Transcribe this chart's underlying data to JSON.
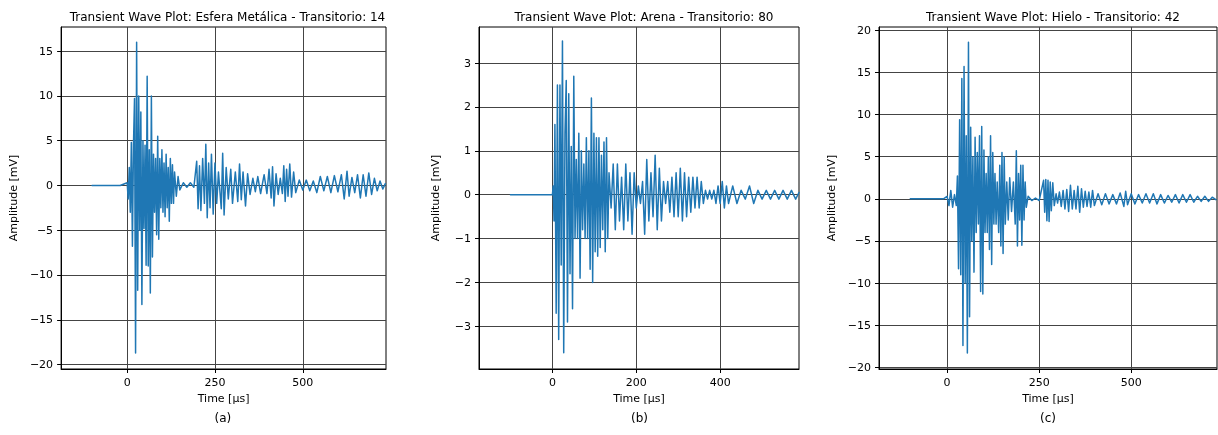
{
  "chart_data": [
    {
      "type": "line",
      "title": "Transient Wave Plot: Esfera Metálica - Transitorio: 14",
      "xlabel": "Time [μs]",
      "ylabel": "Amplitude [mV]",
      "annotations": [
        "(a)"
      ],
      "grid": true,
      "marker": "none",
      "line_style": "solid",
      "xlim": [
        -188,
        737
      ],
      "xticks": [
        0,
        250,
        500
      ],
      "ylim": [
        -20.5,
        17.7
      ],
      "yticks": [
        {
          "value": -20,
          "label": "−20"
        },
        {
          "value": -15,
          "label": "−15"
        },
        {
          "value": -10,
          "label": "−10"
        },
        {
          "value": -5,
          "label": "−5"
        },
        0,
        5,
        10,
        15
      ],
      "series": [
        {
          "color": "#1f77b4",
          "x": [
            -100,
            -20,
            0,
            3,
            6,
            9,
            12,
            15,
            18,
            21,
            24,
            27,
            30,
            33,
            36,
            39,
            42,
            45,
            48,
            51,
            54,
            57,
            60,
            63,
            66,
            69,
            72,
            75,
            78,
            81,
            84,
            87,
            90,
            93,
            96,
            99,
            102,
            105,
            108,
            111,
            114,
            117,
            120,
            123,
            126,
            129,
            132,
            135,
            140,
            145,
            150,
            160,
            170,
            180,
            190,
            198,
            202,
            206,
            210,
            215,
            220,
            224,
            228,
            232,
            236,
            240,
            245,
            250,
            255,
            260,
            268,
            272,
            276,
            282,
            288,
            295,
            300,
            308,
            315,
            320,
            325,
            330,
            337,
            343,
            350,
            358,
            365,
            372,
            380,
            390,
            398,
            404,
            410,
            414,
            418,
            424,
            430,
            436,
            442,
            446,
            450,
            454,
            458,
            463,
            468,
            474,
            480,
            490,
            500,
            510,
            520,
            530,
            540,
            550,
            560,
            570,
            580,
            590,
            600,
            610,
            618,
            626,
            632,
            640,
            648,
            656,
            664,
            672,
            680,
            688,
            696,
            704,
            712,
            720,
            728,
            735
          ],
          "values": [
            0,
            0,
            0.3,
            -1.5,
            2,
            -3,
            4.8,
            -6.8,
            4.5,
            9.7,
            -18.7,
            16,
            -11.7,
            10,
            -5,
            8.2,
            -13.3,
            5,
            -4.8,
            4.5,
            -8.9,
            12.2,
            -9,
            4,
            -12,
            10,
            -8,
            3.5,
            -3,
            3,
            -5.5,
            5.5,
            -6,
            3,
            -2.5,
            4,
            -3,
            2.5,
            -3.5,
            3.5,
            -2.5,
            2,
            -4,
            3,
            -2,
            2.3,
            -2,
            1.5,
            -1.2,
            1,
            -0.5,
            0.3,
            -0.2,
            0.3,
            -0.2,
            2.7,
            -2.6,
            2.2,
            -2.8,
            3,
            -2,
            4.6,
            -3.6,
            2.5,
            -2.5,
            3.5,
            -3.2,
            2.5,
            -2,
            1.5,
            -2.6,
            3.6,
            -3.3,
            2,
            -1.5,
            1.8,
            -2,
            1.5,
            -1.8,
            2.4,
            -1.6,
            1.5,
            -2.3,
            1.3,
            -1,
            0.8,
            -0.7,
            1,
            -0.9,
            1.2,
            -0.9,
            1.8,
            -1.4,
            2.1,
            -2.3,
            1.3,
            -1,
            0.8,
            -0.9,
            2.2,
            -1.8,
            1.8,
            -1.2,
            2.4,
            -1.3,
            1.5,
            -0.8,
            0.6,
            -0.5,
            0.6,
            -0.6,
            0.5,
            -0.8,
            1,
            -0.6,
            1,
            -0.8,
            1.1,
            -0.7,
            1.2,
            -1.5,
            1.6,
            -1.2,
            0.9,
            -0.8,
            1.2,
            -1.4,
            1.2,
            -1.2,
            1.4,
            -1,
            0.8,
            -0.6,
            0.5,
            -0.4,
            0.2
          ]
        }
      ]
    },
    {
      "type": "line",
      "title": "Transient Wave Plot: Arena - Transitorio: 80",
      "xlabel": "Time [μs]",
      "ylabel": "Amplitude [mV]",
      "annotations": [
        "(b)"
      ],
      "grid": true,
      "marker": "none",
      "line_style": "solid",
      "xlim": [
        -175,
        588
      ],
      "xticks": [
        0,
        200,
        400
      ],
      "ylim": [
        -3.97,
        3.82
      ],
      "yticks": [
        {
          "value": -3,
          "label": "−3"
        },
        {
          "value": -2,
          "label": "−2"
        },
        {
          "value": -1,
          "label": "−1"
        },
        0,
        1,
        2,
        3
      ],
      "series": [
        {
          "color": "#1f77b4",
          "x": [
            -100,
            0,
            2,
            4,
            6,
            9,
            12,
            15,
            18,
            21,
            24,
            27,
            30,
            33,
            36,
            39,
            42,
            45,
            48,
            51,
            54,
            57,
            60,
            63,
            66,
            69,
            72,
            75,
            78,
            81,
            84,
            87,
            90,
            93,
            96,
            99,
            102,
            105,
            108,
            111,
            114,
            117,
            120,
            123,
            126,
            129,
            132,
            135,
            140,
            145,
            150,
            155,
            160,
            165,
            170,
            175,
            180,
            185,
            190,
            195,
            200,
            205,
            210,
            215,
            220,
            225,
            230,
            235,
            240,
            245,
            250,
            255,
            260,
            265,
            270,
            275,
            280,
            285,
            290,
            295,
            300,
            305,
            310,
            315,
            320,
            325,
            330,
            335,
            340,
            345,
            350,
            355,
            360,
            365,
            370,
            375,
            380,
            385,
            390,
            395,
            400,
            405,
            410,
            415,
            420,
            430,
            440,
            450,
            460,
            470,
            480,
            490,
            500,
            510,
            520,
            530,
            540,
            550,
            560,
            570,
            580,
            588
          ],
          "values": [
            0,
            0,
            0.2,
            -0.6,
            1.6,
            -2.7,
            2.5,
            -3.3,
            2.5,
            -1.6,
            3.5,
            -3.6,
            1.4,
            2.6,
            -2.9,
            2.3,
            -1.8,
            1.1,
            -2.6,
            2.7,
            -1,
            0.8,
            -1,
            1.4,
            -1.9,
            1,
            -0.8,
            0.7,
            -1,
            1.3,
            -1,
            1,
            -1.7,
            2.2,
            -2,
            1.4,
            -1.3,
            1.3,
            -1.4,
            1.3,
            -1.2,
            0.9,
            -0.8,
            1.2,
            -1.3,
            1.3,
            -1,
            0.5,
            -0.3,
            0.7,
            -0.8,
            0.7,
            -0.6,
            0.4,
            -0.8,
            0.7,
            -0.6,
            0.5,
            -0.9,
            0.5,
            -0.3,
            0.2,
            -0.2,
            0.3,
            -0.9,
            0.8,
            -0.6,
            0.5,
            -0.5,
            0.9,
            -0.8,
            0.6,
            -0.6,
            0.3,
            -0.2,
            0.3,
            -0.4,
            0.4,
            -0.5,
            0.5,
            -0.5,
            0.6,
            -0.6,
            0.5,
            -0.5,
            0.4,
            -0.4,
            0.4,
            -0.3,
            0.4,
            -0.3,
            0.3,
            -0.2,
            0.1,
            -0.1,
            0.1,
            -0.1,
            0.1,
            -0.2,
            0.2,
            -0.2,
            0.3,
            -0.3,
            0.2,
            -0.2,
            0.2,
            -0.2,
            0.1,
            -0.1,
            0.2,
            -0.2,
            0.1,
            -0.1,
            0.1,
            -0.1,
            0.1,
            -0.1,
            0.1,
            -0.1,
            0.1,
            -0.1,
            0.05
          ]
        }
      ]
    },
    {
      "type": "line",
      "title": "Transient Wave Plot: Hielo - Transitorio: 42",
      "xlabel": "Time [μs]",
      "ylabel": "Amplitude [mV]",
      "annotations": [
        "(c)"
      ],
      "grid": true,
      "marker": "none",
      "line_style": "solid",
      "xlim": [
        -185,
        733
      ],
      "xticks": [
        0,
        250,
        500
      ],
      "ylim": [
        -20.2,
        20.4
      ],
      "yticks": [
        {
          "value": -20,
          "label": "−20"
        },
        {
          "value": -15,
          "label": "−15"
        },
        {
          "value": -10,
          "label": "−10"
        },
        {
          "value": -5,
          "label": "−5"
        },
        0,
        5,
        10,
        15,
        20
      ],
      "series": [
        {
          "color": "#1f77b4",
          "x": [
            -100,
            -10,
            0,
            5,
            10,
            15,
            20,
            25,
            28,
            31,
            34,
            37,
            40,
            43,
            46,
            49,
            52,
            55,
            58,
            61,
            64,
            67,
            70,
            73,
            76,
            79,
            82,
            85,
            88,
            91,
            94,
            97,
            100,
            103,
            106,
            109,
            112,
            115,
            118,
            121,
            124,
            127,
            130,
            133,
            136,
            140,
            143,
            146,
            149,
            152,
            155,
            158,
            162,
            166,
            170,
            175,
            180,
            185,
            188,
            191,
            194,
            197,
            200,
            203,
            206,
            209,
            212,
            215,
            220,
            230,
            240,
            250,
            262,
            265,
            268,
            271,
            274,
            277,
            280,
            283,
            287,
            291,
            296,
            300,
            305,
            310,
            315,
            320,
            325,
            330,
            335,
            340,
            345,
            350,
            355,
            360,
            365,
            370,
            375,
            380,
            385,
            390,
            395,
            400,
            410,
            420,
            430,
            440,
            450,
            460,
            470,
            480,
            485,
            490,
            500,
            510,
            520,
            530,
            540,
            550,
            560,
            570,
            580,
            590,
            600,
            610,
            620,
            630,
            640,
            650,
            660,
            670,
            680,
            690,
            700,
            710,
            720,
            730
          ],
          "values": [
            0,
            0,
            0.3,
            -0.8,
            1,
            -1,
            0.5,
            -0.8,
            2.7,
            -8.3,
            9.4,
            -9,
            14.3,
            -17.4,
            15.7,
            -10,
            7.5,
            -18.3,
            18.6,
            -14,
            8.5,
            -5,
            5,
            -8.7,
            7.3,
            -4,
            5.5,
            -3,
            7.5,
            -11,
            8.6,
            -11.3,
            5.8,
            -4,
            3,
            -4,
            5,
            -6,
            7.5,
            -7.8,
            5.5,
            -3,
            3,
            -3,
            2,
            -4,
            4,
            -5.6,
            5.5,
            -6.5,
            5,
            -3,
            2,
            -2.5,
            2.5,
            -1.5,
            2,
            -3,
            5.7,
            -5.6,
            3,
            -2.5,
            4,
            -5.5,
            4,
            -2.5,
            2,
            -1,
            0.3,
            -0.2,
            0.1,
            -0.2,
            2.2,
            -1.6,
            2.3,
            -2.6,
            2.2,
            -2.7,
            2,
            -1.4,
            1.9,
            -0.8,
            0.6,
            -0.5,
            0.8,
            -0.9,
            1,
            -1.2,
            1.1,
            -1.5,
            1.6,
            -1.2,
            1,
            -1.2,
            1.5,
            -1.6,
            1.2,
            -1,
            0.9,
            -0.9,
            0.8,
            -1,
            1,
            -0.8,
            0.6,
            -0.7,
            0.6,
            -0.6,
            0.5,
            -0.6,
            0.7,
            -0.9,
            0.9,
            -0.7,
            0.6,
            -0.6,
            0.5,
            -0.5,
            0.6,
            -0.5,
            0.6,
            -0.6,
            0.5,
            -0.5,
            0.4,
            -0.4,
            0.5,
            -0.5,
            0.5,
            -0.4,
            0.5,
            -0.4,
            0.3,
            -0.3,
            0.3,
            -0.3,
            0.2,
            -0.1
          ]
        }
      ]
    }
  ]
}
